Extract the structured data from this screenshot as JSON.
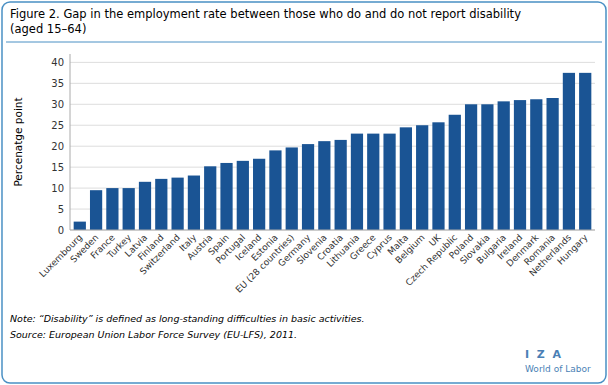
{
  "chart_data": {
    "type": "bar",
    "title": "Figure 2. Gap in the employment rate between those who do and do not report disability",
    "subtitle": "(aged 15–64)",
    "categories": [
      "Luxembourg",
      "Sweden",
      "France",
      "Turkey",
      "Latvia",
      "Finland",
      "Switzerland",
      "Italy",
      "Austria",
      "Spain",
      "Portugal",
      "Iceland",
      "Estonia",
      "EU (28 countries)",
      "Germany",
      "Slovenia",
      "Croatia",
      "Lithuania",
      "Greece",
      "Cyprus",
      "Malta",
      "Belgium",
      "UK",
      "Czech Republic",
      "Poland",
      "Slovakia",
      "Bulgaria",
      "Ireland",
      "Denmark",
      "Romania",
      "Netherlands",
      "Hungary"
    ],
    "values": [
      2.0,
      9.5,
      10.0,
      10.0,
      11.5,
      12.2,
      12.5,
      13.0,
      15.2,
      16.0,
      16.5,
      17.0,
      19.0,
      19.7,
      20.5,
      21.2,
      21.5,
      23.0,
      23.0,
      23.0,
      24.5,
      25.0,
      25.7,
      27.5,
      30.0,
      30.0,
      30.7,
      31.0,
      31.2,
      31.5,
      37.5,
      37.5
    ],
    "color": "#1a5494",
    "y_label": "Percenatge point",
    "ylim": [
      0,
      42
    ],
    "yticks": [
      0,
      5,
      10,
      15,
      20,
      25,
      30,
      35,
      40
    ],
    "grid": true,
    "annotations": [
      "Note: “Disability” is defined as long-standing difficulties in basic activities.",
      "Source: European Union Labor Force Survey (EU-LFS), 2011.",
      "I  Z  A",
      "World of Labor"
    ]
  }
}
